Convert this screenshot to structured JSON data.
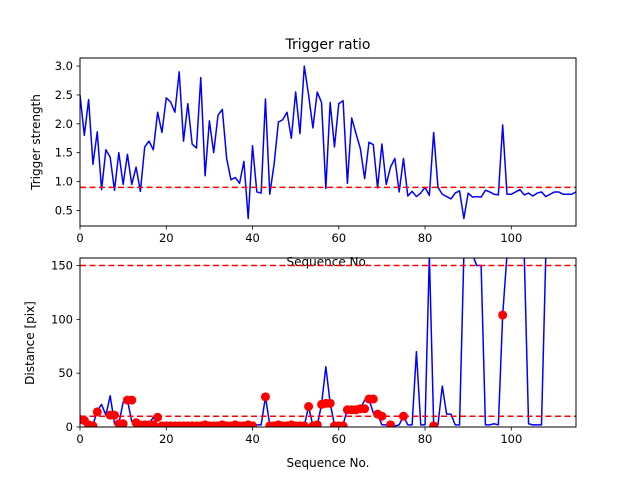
{
  "chart_data": [
    {
      "type": "line",
      "title": "Trigger ratio",
      "xlabel": "Sequence No.",
      "ylabel": "Trigger strength",
      "xlim": [
        0,
        115
      ],
      "ylim": [
        0.23,
        3.14
      ],
      "xticks": [
        0,
        20,
        40,
        60,
        80,
        100
      ],
      "yticks": [
        0.5,
        1.0,
        1.5,
        2.0,
        2.5,
        3.0
      ],
      "ytick_labels": [
        "0.5",
        "1.0",
        "1.5",
        "2.0",
        "2.5",
        "3.0"
      ],
      "threshold": 0.9,
      "series": [
        {
          "color": "#0000ff",
          "x": [
            0,
            1,
            2,
            3,
            4,
            5,
            6,
            7,
            8,
            9,
            10,
            11,
            12,
            13,
            14,
            15,
            16,
            17,
            18,
            19,
            20,
            21,
            22,
            23,
            24,
            25,
            26,
            27,
            28,
            29,
            30,
            31,
            32,
            33,
            34,
            35,
            36,
            37,
            38,
            39,
            40,
            41,
            42,
            43,
            44,
            45,
            46,
            47,
            48,
            49,
            50,
            51,
            52,
            53,
            54,
            55,
            56,
            57,
            58,
            59,
            60,
            61,
            62,
            63,
            64,
            65,
            66,
            67,
            68,
            69,
            70,
            71,
            72,
            73,
            74,
            75,
            76,
            77,
            78,
            79,
            80,
            81,
            82,
            83,
            84,
            85,
            86,
            87,
            88,
            89,
            90,
            91,
            92,
            93,
            94,
            95,
            96,
            97,
            98,
            99,
            100,
            101,
            102,
            103,
            104,
            105,
            106,
            107,
            108,
            109,
            110,
            111,
            112,
            113,
            114,
            115
          ],
          "y": [
            2.5,
            1.8,
            2.42,
            1.3,
            1.86,
            0.86,
            1.55,
            1.42,
            0.85,
            1.5,
            0.95,
            1.47,
            0.95,
            1.25,
            0.83,
            1.6,
            1.7,
            1.55,
            2.2,
            1.85,
            2.45,
            2.38,
            2.2,
            2.9,
            1.7,
            2.35,
            1.65,
            1.58,
            2.8,
            1.1,
            2.05,
            1.5,
            2.15,
            2.25,
            1.4,
            1.03,
            1.07,
            0.97,
            1.35,
            0.36,
            1.62,
            0.82,
            0.8,
            2.43,
            0.78,
            1.3,
            2.03,
            2.07,
            2.2,
            1.75,
            2.55,
            1.83,
            3.0,
            2.5,
            1.93,
            2.55,
            2.37,
            0.88,
            2.37,
            1.6,
            2.35,
            2.4,
            0.97,
            2.1,
            1.83,
            1.57,
            1.05,
            1.68,
            1.64,
            0.89,
            1.65,
            0.95,
            1.25,
            1.4,
            0.82,
            1.4,
            0.75,
            0.83,
            0.74,
            0.8,
            0.9,
            0.76,
            1.85,
            0.9,
            0.78,
            0.74,
            0.7,
            0.8,
            0.84,
            0.36,
            0.8,
            0.73,
            0.74,
            0.73,
            0.85,
            0.82,
            0.78,
            0.77,
            1.98,
            0.78,
            0.78,
            0.82,
            0.86,
            0.77,
            0.8,
            0.75,
            0.8,
            0.82,
            0.74,
            0.78,
            0.82,
            0.82,
            0.78,
            0.78,
            0.78,
            0.82
          ]
        }
      ]
    },
    {
      "type": "line",
      "title": "",
      "xlabel": "Sequence No.",
      "ylabel": "Distance [pix]",
      "xlim": [
        0,
        115
      ],
      "ylim": [
        0,
        157
      ],
      "xticks": [
        0,
        20,
        40,
        60,
        80,
        100
      ],
      "yticks": [
        0,
        50,
        100,
        150
      ],
      "ytick_labels": [
        "0",
        "50",
        "100",
        "150"
      ],
      "thresholds": [
        150,
        10
      ],
      "series": [
        {
          "color": "#0000ff",
          "x": [
            0,
            1,
            2,
            3,
            4,
            5,
            6,
            7,
            8,
            9,
            10,
            11,
            12,
            13,
            14,
            15,
            16,
            17,
            18,
            19,
            20,
            21,
            22,
            23,
            24,
            25,
            26,
            27,
            28,
            29,
            30,
            31,
            32,
            33,
            34,
            35,
            36,
            37,
            38,
            39,
            40,
            41,
            42,
            43,
            44,
            45,
            46,
            47,
            48,
            49,
            50,
            51,
            52,
            53,
            54,
            55,
            56,
            57,
            58,
            59,
            60,
            61,
            62,
            63,
            64,
            65,
            66,
            67,
            68,
            69,
            70,
            71,
            72,
            73,
            74,
            75,
            76,
            77,
            78,
            79,
            80,
            81,
            82,
            83,
            84,
            85,
            86,
            87,
            88,
            89,
            90,
            91,
            92,
            93,
            94,
            95,
            96,
            97,
            98,
            99,
            100,
            101,
            102,
            103,
            104,
            105,
            106,
            107,
            108,
            109,
            110,
            111,
            112,
            113,
            114,
            115
          ],
          "y": [
            5,
            7,
            2,
            2,
            15,
            21,
            11,
            29,
            3,
            3,
            23,
            25,
            5,
            3,
            3,
            2,
            3,
            9,
            2,
            1,
            2,
            1,
            1,
            1,
            1,
            1,
            1,
            1,
            1,
            2,
            1,
            1,
            1,
            2,
            1,
            1,
            2,
            1,
            1,
            2,
            1,
            2,
            2,
            28,
            2,
            1,
            2,
            1,
            1,
            1,
            1,
            2,
            1,
            19,
            1,
            1,
            21,
            56,
            22,
            2,
            2,
            2,
            17,
            16,
            17,
            17,
            25,
            26,
            13,
            12,
            2,
            2,
            2,
            1,
            2,
            10,
            2,
            2,
            70,
            2,
            2,
            160,
            2,
            2,
            38,
            12,
            12,
            2,
            2,
            160,
            160,
            160,
            150,
            150,
            2,
            2,
            3,
            2,
            104,
            160,
            160,
            160,
            160,
            160,
            3,
            2,
            2,
            2,
            160,
            160,
            160,
            160,
            160,
            160,
            160,
            160
          ],
          "markers": {
            "color": "#ff0000",
            "x": [
              0,
              1,
              2,
              3,
              4,
              7,
              8,
              9,
              10,
              11,
              12,
              13,
              14,
              15,
              16,
              17,
              18,
              19,
              20,
              21,
              22,
              23,
              24,
              25,
              26,
              27,
              28,
              29,
              30,
              31,
              32,
              33,
              34,
              35,
              36,
              37,
              38,
              39,
              40,
              43,
              44,
              45,
              46,
              47,
              48,
              49,
              50,
              51,
              52,
              53,
              54,
              55,
              56,
              57,
              58,
              59,
              60,
              61,
              62,
              63,
              64,
              65,
              66,
              67,
              68,
              69,
              70,
              72,
              75,
              82,
              98
            ],
            "y": [
              7,
              6,
              2,
              1,
              14,
              11,
              11,
              3,
              3,
              25,
              25,
              4,
              2,
              2,
              2,
              2,
              9,
              1,
              1,
              1,
              1,
              1,
              1,
              1,
              1,
              1,
              1,
              2,
              1,
              1,
              1,
              2,
              1,
              1,
              2,
              1,
              1,
              2,
              1,
              28,
              1,
              1,
              2,
              1,
              1,
              2,
              1,
              1,
              1,
              19,
              1,
              2,
              21,
              22,
              22,
              1,
              1,
              1,
              16,
              16,
              16,
              17,
              17,
              26,
              26,
              12,
              10,
              2,
              10,
              1,
              104
            ]
          }
        }
      ]
    }
  ]
}
